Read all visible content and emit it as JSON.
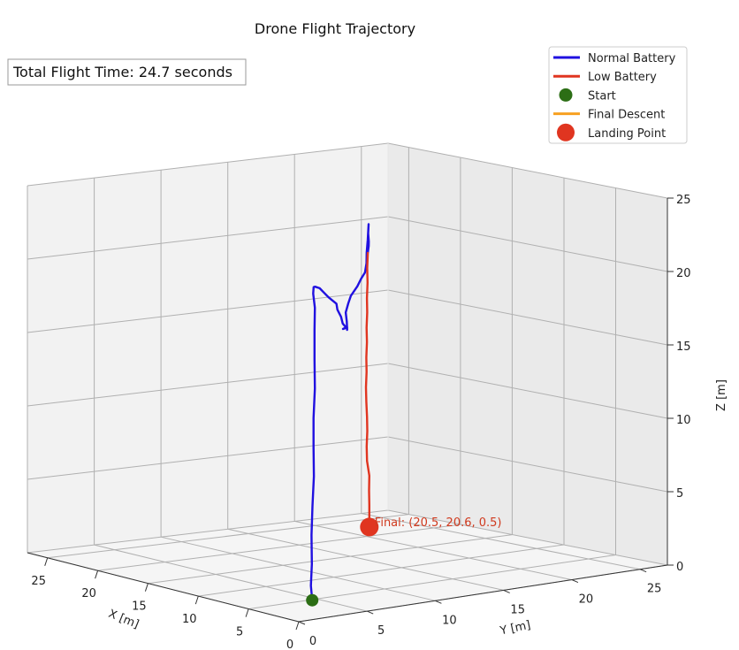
{
  "chart_data": {
    "type": "line3d",
    "title": "Drone Flight Trajectory",
    "xlabel": "X [m]",
    "ylabel": "Y [m]",
    "zlabel": "Z [m]",
    "xlim": [
      0,
      27
    ],
    "ylim": [
      0,
      27
    ],
    "zlim": [
      0,
      25
    ],
    "xticks": [
      0,
      5,
      10,
      15,
      20,
      25
    ],
    "yticks": [
      0,
      5,
      10,
      15,
      20,
      25
    ],
    "zticks": [
      0,
      5,
      10,
      15,
      20,
      25
    ],
    "grid": true,
    "legend_placement": "top-right",
    "info_text": "Total Flight Time: 24.7 seconds",
    "final_label": "Final: (20.5, 20.6, 0.5)",
    "legend": [
      {
        "label": "Normal Battery",
        "kind": "line",
        "color": "#2010e0"
      },
      {
        "label": "Low Battery",
        "kind": "line",
        "color": "#e03520"
      },
      {
        "label": "Start",
        "kind": "marker",
        "color": "#2c6e15",
        "size": "small"
      },
      {
        "label": "Final Descent",
        "kind": "line",
        "color": "#f7a020"
      },
      {
        "label": "Landing Point",
        "kind": "marker",
        "color": "#e03520",
        "size": "large"
      }
    ],
    "series": [
      {
        "name": "Normal Battery",
        "color": "#2010e0",
        "points": [
          [
            3.0,
            3.2,
            0.5
          ],
          [
            3.0,
            3.1,
            1.5
          ],
          [
            2.9,
            3.1,
            3.0
          ],
          [
            2.8,
            3.0,
            5.0
          ],
          [
            2.7,
            3.0,
            7.0
          ],
          [
            2.7,
            3.1,
            9.0
          ],
          [
            2.6,
            3.0,
            11.0
          ],
          [
            2.6,
            3.0,
            13.0
          ],
          [
            2.6,
            3.1,
            15.0
          ],
          [
            2.5,
            3.0,
            17.0
          ],
          [
            2.5,
            3.0,
            19.0
          ],
          [
            2.6,
            3.1,
            20.5
          ],
          [
            2.9,
            3.2,
            21.4
          ],
          [
            3.4,
            3.6,
            21.7
          ],
          [
            4.2,
            4.3,
            21.5
          ],
          [
            5.5,
            5.6,
            21.0
          ],
          [
            7.0,
            7.0,
            20.3
          ],
          [
            8.5,
            8.5,
            19.5
          ],
          [
            10.0,
            10.2,
            18.6
          ],
          [
            11.5,
            11.4,
            17.8
          ],
          [
            12.6,
            12.5,
            17.0
          ],
          [
            13.5,
            13.3,
            16.3
          ],
          [
            14.2,
            14.1,
            15.8
          ],
          [
            14.8,
            14.3,
            15.6
          ],
          [
            14.0,
            14.0,
            15.9
          ],
          [
            13.2,
            13.4,
            16.1
          ],
          [
            12.8,
            13.1,
            16.0
          ],
          [
            13.5,
            13.6,
            16.4
          ],
          [
            14.4,
            14.2,
            16.8
          ],
          [
            15.6,
            15.3,
            17.1
          ],
          [
            16.8,
            16.4,
            17.3
          ],
          [
            18.0,
            17.8,
            17.6
          ],
          [
            19.2,
            19.0,
            17.8
          ],
          [
            20.4,
            20.2,
            17.9
          ],
          [
            21.3,
            21.0,
            18.3
          ],
          [
            22.2,
            21.7,
            18.8
          ],
          [
            23.4,
            22.7,
            19.4
          ],
          [
            24.5,
            23.6,
            20.0
          ],
          [
            25.0,
            24.0,
            20.1
          ],
          [
            24.0,
            23.2,
            19.7
          ],
          [
            22.9,
            22.4,
            19.4
          ],
          [
            22.0,
            21.7,
            19.3
          ],
          [
            21.3,
            21.1,
            19.0
          ]
        ]
      },
      {
        "name": "Low Battery",
        "color": "#e03520",
        "points": [
          [
            21.3,
            21.1,
            19.0
          ],
          [
            21.1,
            20.9,
            18.0
          ],
          [
            21.2,
            21.0,
            17.0
          ],
          [
            21.0,
            20.8,
            16.0
          ],
          [
            21.1,
            20.9,
            15.0
          ],
          [
            20.9,
            20.7,
            14.0
          ],
          [
            21.0,
            20.8,
            13.0
          ],
          [
            20.8,
            20.6,
            12.0
          ],
          [
            20.9,
            20.7,
            11.0
          ],
          [
            20.7,
            20.5,
            10.0
          ],
          [
            20.8,
            20.6,
            9.0
          ],
          [
            20.6,
            20.5,
            8.0
          ],
          [
            20.7,
            20.6,
            7.0
          ],
          [
            20.5,
            20.4,
            6.0
          ],
          [
            20.6,
            20.5,
            5.0
          ],
          [
            20.5,
            20.6,
            4.0
          ],
          [
            20.4,
            20.5,
            3.0
          ],
          [
            20.5,
            20.6,
            2.0
          ],
          [
            20.5,
            20.6,
            1.0
          ],
          [
            20.5,
            20.6,
            0.5
          ]
        ]
      }
    ],
    "start_point": [
      3.0,
      3.2,
      0.5
    ],
    "landing_point": [
      20.5,
      20.6,
      0.5
    ]
  }
}
